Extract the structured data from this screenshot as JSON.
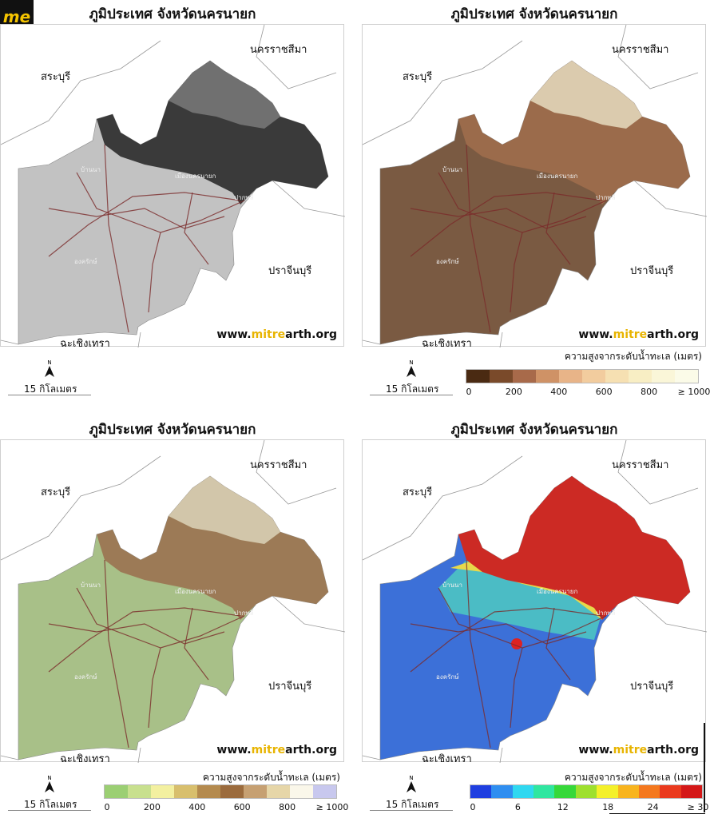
{
  "logo": "me",
  "title": "ภูมิประเทศ จังหวัดนครนายก",
  "website": {
    "pre": "www.",
    "accent": "mitre",
    "post": "arth.org"
  },
  "neighbors": {
    "saraburi": "สระบุรี",
    "nakhon_ratchasima": "นครราชสีมา",
    "prachinburi": "ปราจีนบุรี",
    "chachoengsao": "ฉะเชิงเทรา"
  },
  "towns": {
    "ban_na": "บ้านนา",
    "mueang": "เมืองนครนายก",
    "pak_phli": "ปากพลี",
    "ongkharak": "องครักษ์"
  },
  "north_label": "N",
  "scale_label": "15 กิโลเมตร",
  "legend_title": "ความสูงจากระดับน้ำทะเล (เมตร)",
  "legend_elev_brown": {
    "colors": [
      "#4a2a12",
      "#7a4a2a",
      "#a86a4a",
      "#cf9266",
      "#e8b488",
      "#f2cc9e",
      "#f6e0b2",
      "#f8eec4",
      "#faf6d8",
      "#fbfbe8"
    ],
    "ticks": [
      "0",
      "200",
      "400",
      "600",
      "800",
      "≥ 1000"
    ]
  },
  "legend_elev_green": {
    "colors": [
      "#9bcf73",
      "#c8e08e",
      "#f3f0a0",
      "#d8bf6d",
      "#b48a4e",
      "#9b6b3d",
      "#c6a072",
      "#e6d6a8",
      "#faf7ea",
      "#c8c8ee"
    ],
    "ticks": [
      "0",
      "200",
      "400",
      "600",
      "800",
      "≥ 1000"
    ]
  },
  "legend_slope": {
    "colors": [
      "#1f3fe0",
      "#2f8ef0",
      "#2fd8f0",
      "#2fe6a0",
      "#36d83a",
      "#9ee02e",
      "#f4f02a",
      "#f8b41e",
      "#f4781e",
      "#ea3a1e",
      "#d41818"
    ],
    "ticks": [
      "0",
      "6",
      "12",
      "18",
      "24",
      "≥ 30"
    ]
  },
  "panels": [
    {
      "id": "hillshade",
      "fill": "#c2c2c2",
      "mountain": "#3a3a3a",
      "mountain2": "#7a7a7a"
    },
    {
      "id": "brown",
      "fill": "#7a5a42",
      "mountain": "#9b6b4b",
      "mountain2": "#e6dcc0"
    },
    {
      "id": "green",
      "fill": "#a8c088",
      "mountain": "#9c7a56",
      "mountain2": "#dcd4b8"
    },
    {
      "id": "slope",
      "fill": "#3c70d8",
      "mountain": "#cc2a24",
      "mountain2": "#e7d84a"
    }
  ]
}
